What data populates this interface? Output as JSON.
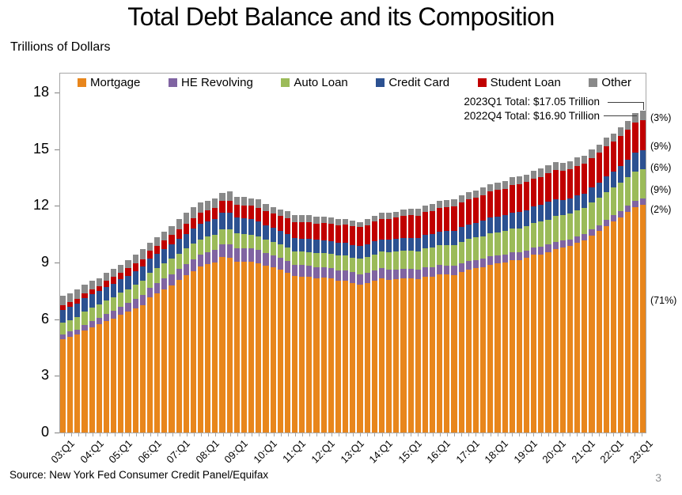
{
  "page": {
    "source": "Source: New York Fed Consumer Credit Panel/Equifax",
    "page_number": "3"
  },
  "chart_data": {
    "type": "bar",
    "stacked": true,
    "title": "Total Debt Balance and its Composition",
    "ylabel": "Trillions of Dollars",
    "xlabel": "",
    "ylim": [
      0,
      18
    ],
    "yticks": [
      0,
      3,
      6,
      9,
      12,
      15,
      18
    ],
    "xtick_every": 4,
    "grid": false,
    "legend_position": "top",
    "categories": [
      "03:Q1",
      "03:Q2",
      "03:Q3",
      "03:Q4",
      "04:Q1",
      "04:Q2",
      "04:Q3",
      "04:Q4",
      "05:Q1",
      "05:Q2",
      "05:Q3",
      "05:Q4",
      "06:Q1",
      "06:Q2",
      "06:Q3",
      "06:Q4",
      "07:Q1",
      "07:Q2",
      "07:Q3",
      "07:Q4",
      "08:Q1",
      "08:Q2",
      "08:Q3",
      "08:Q4",
      "09:Q1",
      "09:Q2",
      "09:Q3",
      "09:Q4",
      "10:Q1",
      "10:Q2",
      "10:Q3",
      "10:Q4",
      "11:Q1",
      "11:Q2",
      "11:Q3",
      "11:Q4",
      "12:Q1",
      "12:Q2",
      "12:Q3",
      "12:Q4",
      "13:Q1",
      "13:Q2",
      "13:Q3",
      "13:Q4",
      "14:Q1",
      "14:Q2",
      "14:Q3",
      "14:Q4",
      "15:Q1",
      "15:Q2",
      "15:Q3",
      "15:Q4",
      "16:Q1",
      "16:Q2",
      "16:Q3",
      "16:Q4",
      "17:Q1",
      "17:Q2",
      "17:Q3",
      "17:Q4",
      "18:Q1",
      "18:Q2",
      "18:Q3",
      "18:Q4",
      "19:Q1",
      "19:Q2",
      "19:Q3",
      "19:Q4",
      "20:Q1",
      "20:Q2",
      "20:Q3",
      "20:Q4",
      "21:Q1",
      "21:Q2",
      "21:Q3",
      "21:Q4",
      "22:Q1",
      "22:Q2",
      "22:Q3",
      "22:Q4",
      "23:Q1"
    ],
    "series": [
      {
        "name": "Mortgage",
        "color": "#E8861C",
        "share_label": "(71%)",
        "values": [
          4.94,
          5.08,
          5.18,
          5.41,
          5.58,
          5.72,
          5.89,
          6.02,
          6.23,
          6.39,
          6.58,
          6.76,
          7.14,
          7.35,
          7.59,
          7.8,
          8.09,
          8.34,
          8.56,
          8.8,
          8.93,
          9.0,
          9.29,
          9.26,
          9.06,
          9.06,
          9.04,
          8.95,
          8.85,
          8.74,
          8.61,
          8.45,
          8.27,
          8.26,
          8.24,
          8.17,
          8.19,
          8.15,
          8.03,
          8.03,
          7.93,
          7.84,
          7.9,
          8.05,
          8.16,
          8.1,
          8.13,
          8.17,
          8.17,
          8.12,
          8.26,
          8.25,
          8.37,
          8.36,
          8.35,
          8.48,
          8.63,
          8.69,
          8.74,
          8.88,
          8.94,
          9.0,
          9.14,
          9.12,
          9.24,
          9.41,
          9.44,
          9.56,
          9.71,
          9.78,
          9.86,
          10.04,
          10.16,
          10.44,
          10.67,
          10.93,
          11.18,
          11.39,
          11.67,
          11.92,
          12.04
        ]
      },
      {
        "name": "HE Revolving",
        "color": "#8064A2",
        "share_label": "(2%)",
        "values": [
          0.24,
          0.26,
          0.27,
          0.3,
          0.33,
          0.36,
          0.4,
          0.42,
          0.44,
          0.46,
          0.48,
          0.51,
          0.54,
          0.56,
          0.57,
          0.58,
          0.58,
          0.59,
          0.61,
          0.61,
          0.62,
          0.65,
          0.67,
          0.7,
          0.71,
          0.71,
          0.71,
          0.7,
          0.66,
          0.65,
          0.65,
          0.64,
          0.61,
          0.61,
          0.6,
          0.6,
          0.58,
          0.57,
          0.57,
          0.56,
          0.55,
          0.54,
          0.54,
          0.53,
          0.53,
          0.52,
          0.51,
          0.51,
          0.51,
          0.5,
          0.49,
          0.49,
          0.49,
          0.48,
          0.47,
          0.47,
          0.46,
          0.45,
          0.45,
          0.44,
          0.44,
          0.43,
          0.42,
          0.41,
          0.41,
          0.4,
          0.4,
          0.39,
          0.39,
          0.38,
          0.36,
          0.35,
          0.34,
          0.32,
          0.32,
          0.32,
          0.32,
          0.32,
          0.33,
          0.34,
          0.34
        ]
      },
      {
        "name": "Auto Loan",
        "color": "#9BBB59",
        "share_label": "(9%)",
        "values": [
          0.64,
          0.62,
          0.68,
          0.7,
          0.7,
          0.71,
          0.72,
          0.73,
          0.73,
          0.74,
          0.77,
          0.78,
          0.79,
          0.8,
          0.81,
          0.81,
          0.8,
          0.81,
          0.82,
          0.82,
          0.82,
          0.81,
          0.81,
          0.79,
          0.76,
          0.74,
          0.73,
          0.72,
          0.71,
          0.7,
          0.7,
          0.7,
          0.7,
          0.71,
          0.72,
          0.73,
          0.73,
          0.75,
          0.77,
          0.78,
          0.79,
          0.81,
          0.84,
          0.86,
          0.88,
          0.91,
          0.93,
          0.94,
          0.95,
          0.98,
          1.01,
          1.04,
          1.06,
          1.1,
          1.12,
          1.14,
          1.17,
          1.19,
          1.21,
          1.22,
          1.23,
          1.24,
          1.26,
          1.27,
          1.28,
          1.3,
          1.32,
          1.33,
          1.35,
          1.34,
          1.36,
          1.37,
          1.38,
          1.42,
          1.44,
          1.46,
          1.47,
          1.5,
          1.52,
          1.55,
          1.56
        ]
      },
      {
        "name": "Credit Card",
        "color": "#2C5191",
        "share_label": "(6%)",
        "values": [
          0.69,
          0.69,
          0.69,
          0.7,
          0.7,
          0.7,
          0.71,
          0.72,
          0.71,
          0.72,
          0.73,
          0.73,
          0.73,
          0.74,
          0.75,
          0.77,
          0.77,
          0.79,
          0.81,
          0.84,
          0.82,
          0.85,
          0.87,
          0.87,
          0.85,
          0.83,
          0.81,
          0.81,
          0.76,
          0.74,
          0.73,
          0.73,
          0.7,
          0.69,
          0.69,
          0.7,
          0.68,
          0.67,
          0.67,
          0.68,
          0.66,
          0.67,
          0.67,
          0.68,
          0.66,
          0.67,
          0.68,
          0.7,
          0.68,
          0.7,
          0.71,
          0.73,
          0.71,
          0.73,
          0.75,
          0.78,
          0.76,
          0.78,
          0.81,
          0.83,
          0.82,
          0.83,
          0.84,
          0.87,
          0.85,
          0.87,
          0.88,
          0.93,
          0.89,
          0.82,
          0.81,
          0.82,
          0.77,
          0.79,
          0.8,
          0.86,
          0.84,
          0.89,
          0.93,
          0.99,
          0.99
        ]
      },
      {
        "name": "Student Loan",
        "color": "#C00000",
        "share_label": "(9%)",
        "values": [
          0.24,
          0.24,
          0.25,
          0.25,
          0.26,
          0.26,
          0.33,
          0.35,
          0.36,
          0.38,
          0.39,
          0.41,
          0.43,
          0.45,
          0.47,
          0.49,
          0.51,
          0.53,
          0.55,
          0.56,
          0.58,
          0.6,
          0.62,
          0.64,
          0.67,
          0.69,
          0.71,
          0.72,
          0.74,
          0.76,
          0.78,
          0.81,
          0.84,
          0.85,
          0.87,
          0.87,
          0.9,
          0.91,
          0.94,
          0.97,
          0.99,
          1.01,
          1.03,
          1.06,
          1.08,
          1.11,
          1.13,
          1.16,
          1.19,
          1.19,
          1.2,
          1.23,
          1.26,
          1.26,
          1.28,
          1.31,
          1.34,
          1.34,
          1.36,
          1.38,
          1.41,
          1.41,
          1.44,
          1.46,
          1.49,
          1.48,
          1.5,
          1.51,
          1.54,
          1.54,
          1.55,
          1.55,
          1.58,
          1.57,
          1.58,
          1.58,
          1.59,
          1.59,
          1.57,
          1.6,
          1.6
        ]
      },
      {
        "name": "Other",
        "color": "#898989",
        "share_label": "(3%)",
        "values": [
          0.48,
          0.47,
          0.49,
          0.45,
          0.45,
          0.42,
          0.39,
          0.44,
          0.41,
          0.43,
          0.48,
          0.54,
          0.41,
          0.45,
          0.43,
          0.48,
          0.54,
          0.56,
          0.57,
          0.56,
          0.48,
          0.49,
          0.42,
          0.53,
          0.42,
          0.43,
          0.4,
          0.44,
          0.39,
          0.35,
          0.32,
          0.38,
          0.38,
          0.38,
          0.38,
          0.37,
          0.36,
          0.33,
          0.33,
          0.3,
          0.31,
          0.28,
          0.31,
          0.31,
          0.31,
          0.32,
          0.32,
          0.33,
          0.35,
          0.36,
          0.36,
          0.37,
          0.36,
          0.37,
          0.38,
          0.39,
          0.37,
          0.38,
          0.39,
          0.41,
          0.39,
          0.4,
          0.41,
          0.42,
          0.4,
          0.41,
          0.43,
          0.44,
          0.42,
          0.42,
          0.42,
          0.44,
          0.42,
          0.44,
          0.43,
          0.45,
          0.44,
          0.47,
          0.49,
          0.51,
          0.51
        ]
      }
    ],
    "annotations": [
      {
        "text": "2023Q1 Total: $17.05 Trillion"
      },
      {
        "text": "2022Q4 Total: $16.90 Trillion"
      }
    ]
  }
}
